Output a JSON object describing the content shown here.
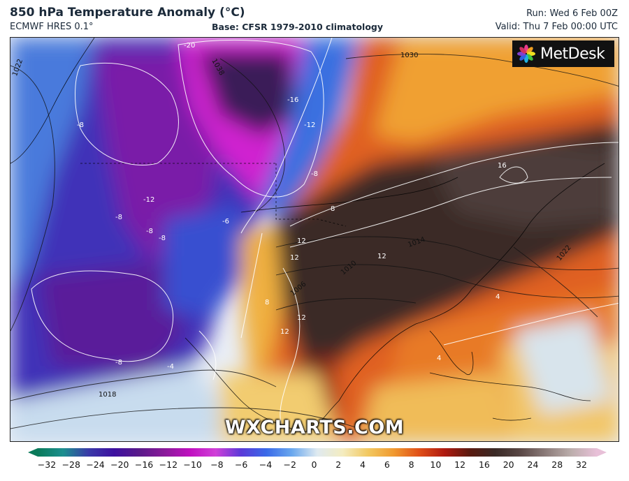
{
  "header": {
    "title": "850 hPa Temperature Anomaly (°C)",
    "model": "ECMWF HRES 0.1°",
    "base": "Base: CFSR 1979-2010 climatology",
    "run": "Run: Wed 6 Feb 00Z",
    "valid": "Valid: Thu 7 Feb 00:00 UTC"
  },
  "brand": {
    "name": "MetDesk"
  },
  "watermark": "WXCHARTS.COM",
  "legend": {
    "ticks": [
      "−32",
      "−28",
      "−24",
      "−20",
      "−16",
      "−12",
      "−10",
      "−8",
      "−6",
      "−4",
      "−2",
      "0",
      "2",
      "4",
      "6",
      "8",
      "10",
      "12",
      "16",
      "20",
      "24",
      "28",
      "32"
    ],
    "colors": [
      "#0a7a5a",
      "#1c8f8f",
      "#3a3aa8",
      "#3d10a0",
      "#5a1a8a",
      "#8a1a9a",
      "#c010c0",
      "#d040d8",
      "#5a3ad8",
      "#3a6ae8",
      "#6aa8ee",
      "#dfeaf0",
      "#f4ecc0",
      "#f2c860",
      "#f09a30",
      "#e05018",
      "#b01a10",
      "#5a1a10",
      "#3a2a26",
      "#5a4846",
      "#8c7c7a",
      "#bcaeac",
      "#e8c0d8"
    ]
  },
  "map_labels": {
    "isobars": [
      "1022",
      "1030",
      "1038",
      "1014",
      "1010",
      "1006",
      "1022",
      "1018"
    ],
    "anomalies": [
      "-20",
      "-16",
      "-12",
      "-8",
      "-8",
      "-12",
      "-8",
      "-8",
      "-8",
      "-6",
      "-8",
      "-4",
      "8",
      "12",
      "12",
      "8",
      "12",
      "12",
      "16",
      "12",
      "4",
      "4"
    ]
  }
}
